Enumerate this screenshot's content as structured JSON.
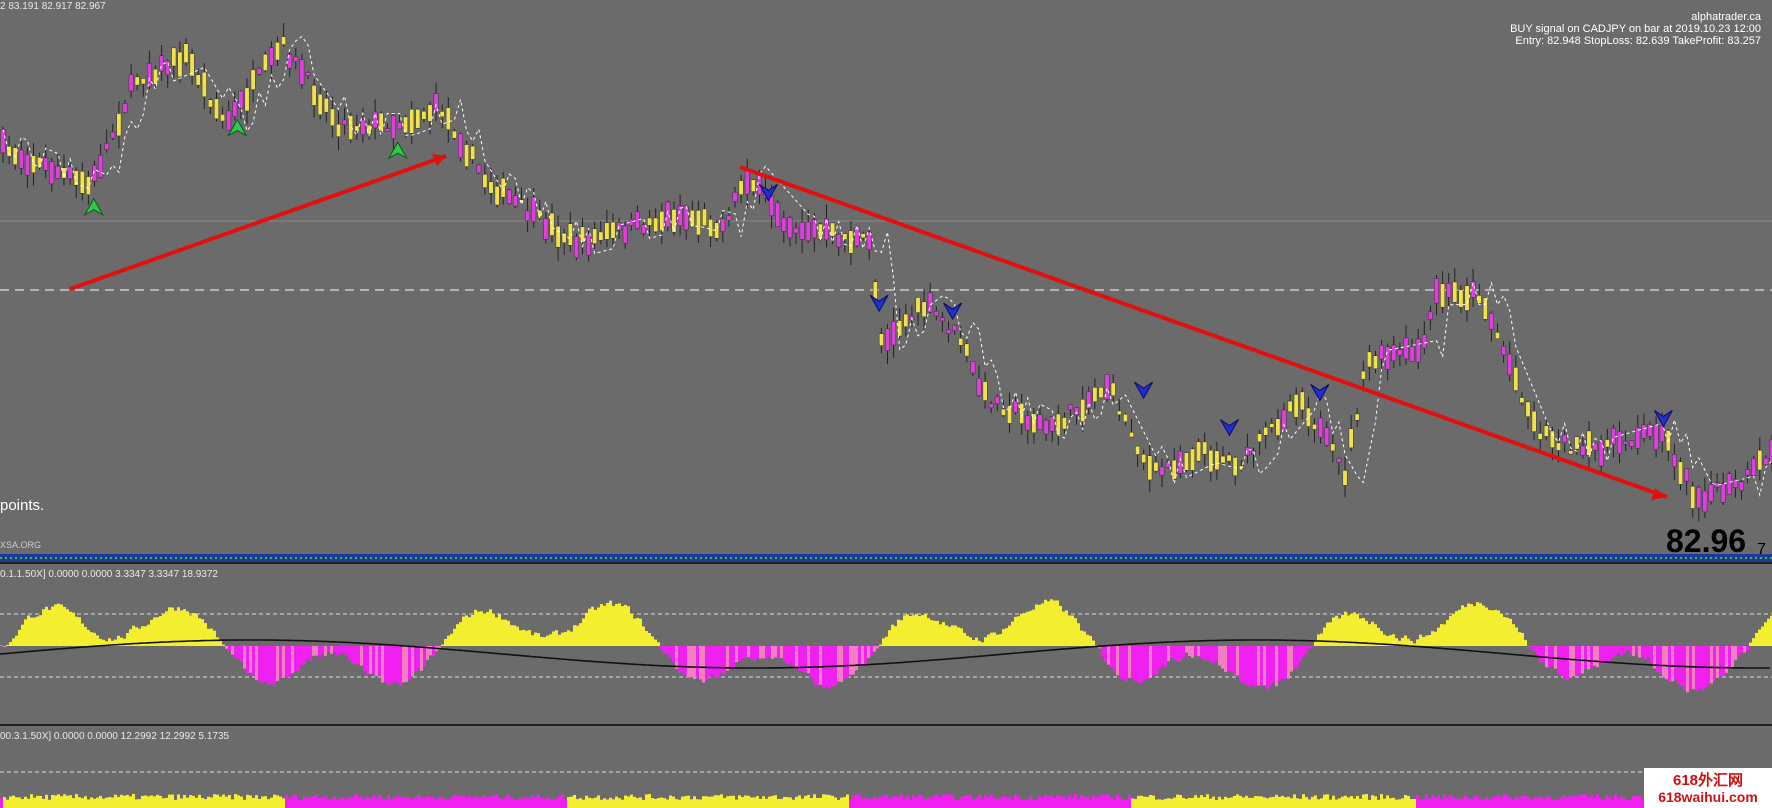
{
  "header": {
    "ohlc": "2 83.191 82.917 82.967",
    "site": "alphatrader.ca",
    "signal": "BUY signal on CADJPY on bar at 2019.10.23 12:00",
    "levels": "Entry: 82.948 StopLoss: 82.639 TakeProfit: 83.257"
  },
  "main_panel": {
    "points_note": "points.",
    "source": "XSA.ORG",
    "price": "82.96",
    "price_digit": "7"
  },
  "indicators": [
    {
      "label": "0.1.1.50X] 0.0000 0.0000 3.3347 3.3347 18.9372"
    },
    {
      "label": "00.3.1.50X] 0.0000 0.0000 12.2992 12.2992 5.1735"
    }
  ],
  "watermark": {
    "name": "618外汇网",
    "url": "618waihui.com"
  }
}
